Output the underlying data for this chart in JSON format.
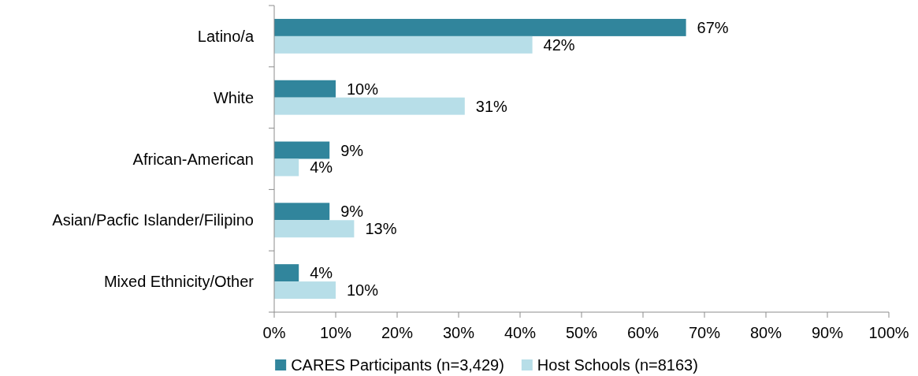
{
  "chart_data": {
    "type": "bar",
    "orientation": "horizontal",
    "legend": "bottom",
    "categories": [
      "Latino/a",
      "White",
      "African-American",
      "Asian/Pacfic Islander/Filipino",
      "Mixed Ethnicity/Other"
    ],
    "series": [
      {
        "name": "CARES Participants (n=3,429)",
        "color": "#31859c",
        "values": [
          67,
          10,
          9,
          9,
          4
        ],
        "value_labels": [
          "67%",
          "10%",
          "9%",
          "9%",
          "4%"
        ]
      },
      {
        "name": "Host Schools (n=8163)",
        "color": "#b7dee8",
        "values": [
          42,
          31,
          4,
          13,
          10
        ],
        "value_labels": [
          "42%",
          "31%",
          "4%",
          "13%",
          "10%"
        ]
      }
    ],
    "xlim": [
      0,
      100
    ],
    "xticks": [
      {
        "value": 0,
        "label": "0%"
      },
      {
        "value": 10,
        "label": "10%"
      },
      {
        "value": 20,
        "label": "20%"
      },
      {
        "value": 30,
        "label": "30%"
      },
      {
        "value": 40,
        "label": "40%"
      },
      {
        "value": 50,
        "label": "50%"
      },
      {
        "value": 60,
        "label": "60%"
      },
      {
        "value": 70,
        "label": "70%"
      },
      {
        "value": 80,
        "label": "80%"
      },
      {
        "value": 90,
        "label": "90%"
      },
      {
        "value": 100,
        "label": "100%"
      }
    ]
  }
}
